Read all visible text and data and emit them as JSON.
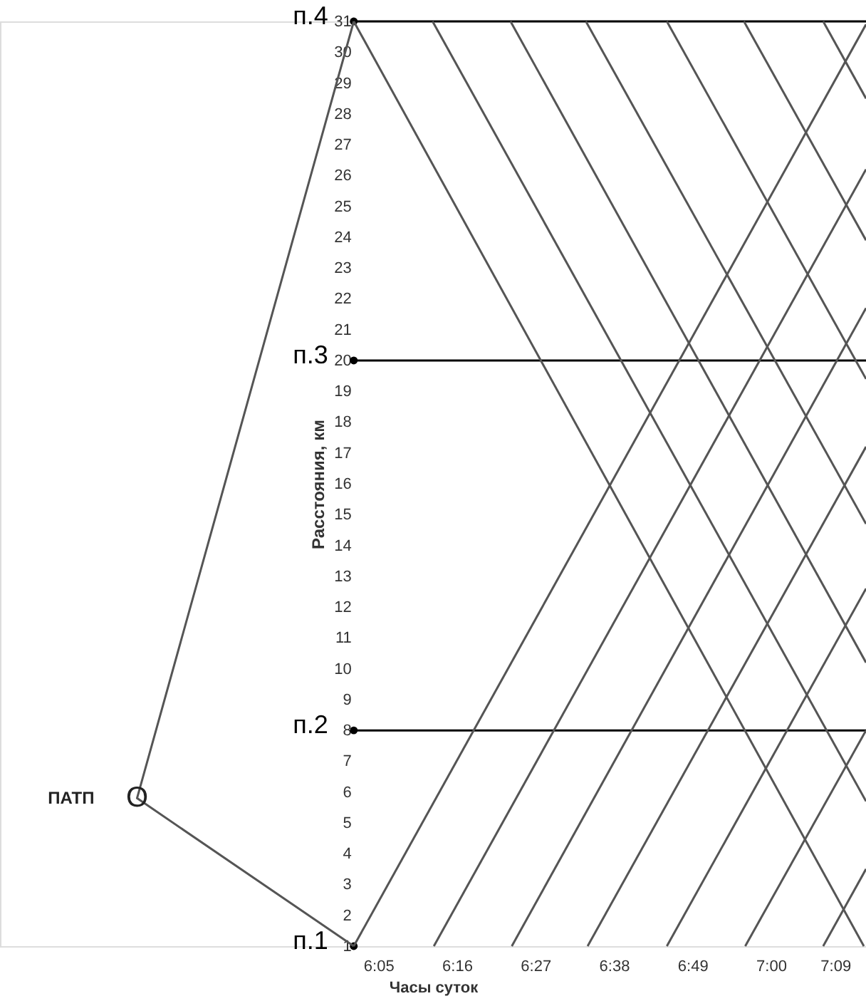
{
  "chart_data": {
    "type": "line",
    "xlabel": "Часы суток",
    "ylabel": "Расстояния, км",
    "xlim": [
      5.2,
      7.222
    ],
    "ylim": [
      1,
      31
    ],
    "xticks": [
      {
        "value": 6.0833,
        "label": "6:05"
      },
      {
        "value": 6.2667,
        "label": "6:16"
      },
      {
        "value": 6.45,
        "label": "6:27"
      },
      {
        "value": 6.6333,
        "label": "6:38"
      },
      {
        "value": 6.8167,
        "label": "6:49"
      },
      {
        "value": 7.0,
        "label": "7:00"
      },
      {
        "value": 7.15,
        "label": "7:09"
      }
    ],
    "yticks": [
      1,
      2,
      3,
      4,
      5,
      6,
      7,
      8,
      9,
      10,
      11,
      12,
      13,
      14,
      15,
      16,
      17,
      18,
      19,
      20,
      21,
      22,
      23,
      24,
      25,
      26,
      27,
      28,
      29,
      30,
      31
    ],
    "grid": false,
    "series": [
      {
        "type": "scatter",
        "marker": "circle",
        "color": "#000000",
        "x": [
          6.026,
          6.026,
          6.026
        ],
        "values": [
          8,
          20,
          31
        ]
      },
      {
        "name": "п.1",
        "type": "scatter",
        "marker": "circle",
        "color": "#000000",
        "x": [
          6.026
        ],
        "values": [
          1
        ]
      },
      {
        "name": "п.2",
        "color": "#000000",
        "x": [
          6.026,
          7.222
        ],
        "values": [
          8,
          8
        ]
      },
      {
        "name": "п.3",
        "color": "#000000",
        "x": [
          6.026,
          7.222
        ],
        "values": [
          20,
          20
        ]
      },
      {
        "name": "п.4",
        "color": "#000000",
        "x": [
          6.026,
          7.222
        ],
        "values": [
          31,
          31
        ]
      },
      {
        "color": "#555555",
        "x": [
          6.026,
          5.52,
          6.026
        ],
        "values": [
          31,
          5.8,
          1
        ]
      },
      {
        "color": "#555555",
        "x": [
          6.026,
          7.222
        ],
        "values": [
          1,
          30.9
        ]
      },
      {
        "color": "#555555",
        "x": [
          6.213,
          7.222
        ],
        "values": [
          1,
          26.2
        ]
      },
      {
        "color": "#555555",
        "x": [
          6.395,
          7.222
        ],
        "values": [
          1,
          21.7
        ]
      },
      {
        "color": "#555555",
        "x": [
          6.572,
          7.222
        ],
        "values": [
          1,
          17.2
        ]
      },
      {
        "color": "#555555",
        "x": [
          6.757,
          7.222
        ],
        "values": [
          1,
          12.6
        ]
      },
      {
        "color": "#555555",
        "x": [
          6.94,
          7.222
        ],
        "values": [
          1,
          8.0
        ]
      },
      {
        "color": "#555555",
        "x": [
          7.122,
          7.222
        ],
        "values": [
          1,
          3.5
        ]
      },
      {
        "color": "#555555",
        "x": [
          6.026,
          7.217
        ],
        "values": [
          31,
          1
        ]
      },
      {
        "color": "#555555",
        "x": [
          6.21,
          7.222
        ],
        "values": [
          31,
          5.7
        ]
      },
      {
        "color": "#555555",
        "x": [
          6.392,
          7.222
        ],
        "values": [
          31,
          10.2
        ]
      },
      {
        "color": "#555555",
        "x": [
          6.568,
          7.222
        ],
        "values": [
          31,
          14.7
        ]
      },
      {
        "color": "#555555",
        "x": [
          6.757,
          7.222
        ],
        "values": [
          31,
          19.4
        ]
      },
      {
        "color": "#555555",
        "x": [
          6.937,
          7.222
        ],
        "values": [
          31,
          23.9
        ]
      },
      {
        "color": "#555555",
        "x": [
          7.122,
          7.222
        ],
        "values": [
          31,
          28.5
        ]
      }
    ],
    "annotations": [
      "ПАТП",
      {
        "text": "O",
        "x": 5.52,
        "y": 5.8
      }
    ]
  }
}
